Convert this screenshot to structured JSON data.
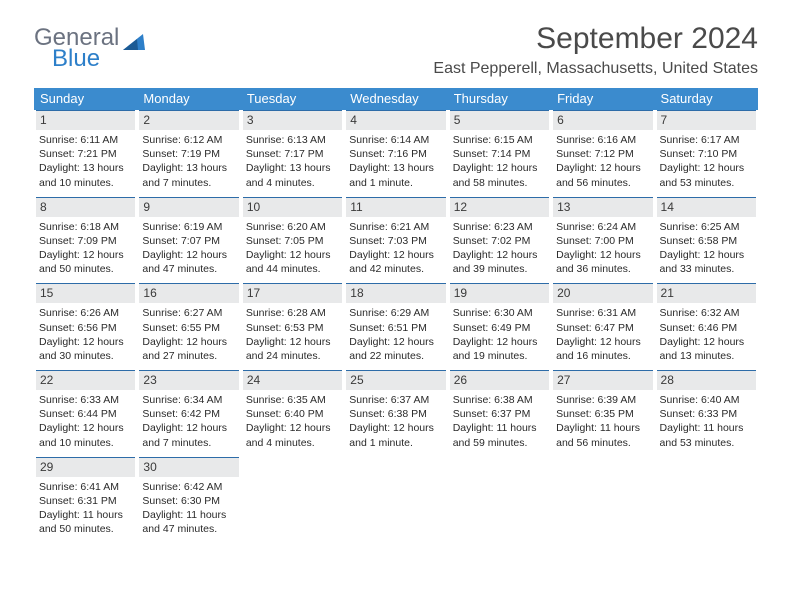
{
  "logo": {
    "word1": "General",
    "word2": "Blue"
  },
  "title": "September 2024",
  "location": "East Pepperell, Massachusetts, United States",
  "colors": {
    "header_bg": "#3b8bce",
    "header_text": "#ffffff",
    "daynum_bg": "#e8e9ea",
    "daynum_border": "#2d6ca8",
    "logo_gray": "#6b7280",
    "logo_blue": "#2d7fc9",
    "text": "#2a2a2a"
  },
  "daysOfWeek": [
    "Sunday",
    "Monday",
    "Tuesday",
    "Wednesday",
    "Thursday",
    "Friday",
    "Saturday"
  ],
  "weeks": [
    [
      {
        "n": "1",
        "sr": "Sunrise: 6:11 AM",
        "ss": "Sunset: 7:21 PM",
        "d1": "Daylight: 13 hours",
        "d2": "and 10 minutes."
      },
      {
        "n": "2",
        "sr": "Sunrise: 6:12 AM",
        "ss": "Sunset: 7:19 PM",
        "d1": "Daylight: 13 hours",
        "d2": "and 7 minutes."
      },
      {
        "n": "3",
        "sr": "Sunrise: 6:13 AM",
        "ss": "Sunset: 7:17 PM",
        "d1": "Daylight: 13 hours",
        "d2": "and 4 minutes."
      },
      {
        "n": "4",
        "sr": "Sunrise: 6:14 AM",
        "ss": "Sunset: 7:16 PM",
        "d1": "Daylight: 13 hours",
        "d2": "and 1 minute."
      },
      {
        "n": "5",
        "sr": "Sunrise: 6:15 AM",
        "ss": "Sunset: 7:14 PM",
        "d1": "Daylight: 12 hours",
        "d2": "and 58 minutes."
      },
      {
        "n": "6",
        "sr": "Sunrise: 6:16 AM",
        "ss": "Sunset: 7:12 PM",
        "d1": "Daylight: 12 hours",
        "d2": "and 56 minutes."
      },
      {
        "n": "7",
        "sr": "Sunrise: 6:17 AM",
        "ss": "Sunset: 7:10 PM",
        "d1": "Daylight: 12 hours",
        "d2": "and 53 minutes."
      }
    ],
    [
      {
        "n": "8",
        "sr": "Sunrise: 6:18 AM",
        "ss": "Sunset: 7:09 PM",
        "d1": "Daylight: 12 hours",
        "d2": "and 50 minutes."
      },
      {
        "n": "9",
        "sr": "Sunrise: 6:19 AM",
        "ss": "Sunset: 7:07 PM",
        "d1": "Daylight: 12 hours",
        "d2": "and 47 minutes."
      },
      {
        "n": "10",
        "sr": "Sunrise: 6:20 AM",
        "ss": "Sunset: 7:05 PM",
        "d1": "Daylight: 12 hours",
        "d2": "and 44 minutes."
      },
      {
        "n": "11",
        "sr": "Sunrise: 6:21 AM",
        "ss": "Sunset: 7:03 PM",
        "d1": "Daylight: 12 hours",
        "d2": "and 42 minutes."
      },
      {
        "n": "12",
        "sr": "Sunrise: 6:23 AM",
        "ss": "Sunset: 7:02 PM",
        "d1": "Daylight: 12 hours",
        "d2": "and 39 minutes."
      },
      {
        "n": "13",
        "sr": "Sunrise: 6:24 AM",
        "ss": "Sunset: 7:00 PM",
        "d1": "Daylight: 12 hours",
        "d2": "and 36 minutes."
      },
      {
        "n": "14",
        "sr": "Sunrise: 6:25 AM",
        "ss": "Sunset: 6:58 PM",
        "d1": "Daylight: 12 hours",
        "d2": "and 33 minutes."
      }
    ],
    [
      {
        "n": "15",
        "sr": "Sunrise: 6:26 AM",
        "ss": "Sunset: 6:56 PM",
        "d1": "Daylight: 12 hours",
        "d2": "and 30 minutes."
      },
      {
        "n": "16",
        "sr": "Sunrise: 6:27 AM",
        "ss": "Sunset: 6:55 PM",
        "d1": "Daylight: 12 hours",
        "d2": "and 27 minutes."
      },
      {
        "n": "17",
        "sr": "Sunrise: 6:28 AM",
        "ss": "Sunset: 6:53 PM",
        "d1": "Daylight: 12 hours",
        "d2": "and 24 minutes."
      },
      {
        "n": "18",
        "sr": "Sunrise: 6:29 AM",
        "ss": "Sunset: 6:51 PM",
        "d1": "Daylight: 12 hours",
        "d2": "and 22 minutes."
      },
      {
        "n": "19",
        "sr": "Sunrise: 6:30 AM",
        "ss": "Sunset: 6:49 PM",
        "d1": "Daylight: 12 hours",
        "d2": "and 19 minutes."
      },
      {
        "n": "20",
        "sr": "Sunrise: 6:31 AM",
        "ss": "Sunset: 6:47 PM",
        "d1": "Daylight: 12 hours",
        "d2": "and 16 minutes."
      },
      {
        "n": "21",
        "sr": "Sunrise: 6:32 AM",
        "ss": "Sunset: 6:46 PM",
        "d1": "Daylight: 12 hours",
        "d2": "and 13 minutes."
      }
    ],
    [
      {
        "n": "22",
        "sr": "Sunrise: 6:33 AM",
        "ss": "Sunset: 6:44 PM",
        "d1": "Daylight: 12 hours",
        "d2": "and 10 minutes."
      },
      {
        "n": "23",
        "sr": "Sunrise: 6:34 AM",
        "ss": "Sunset: 6:42 PM",
        "d1": "Daylight: 12 hours",
        "d2": "and 7 minutes."
      },
      {
        "n": "24",
        "sr": "Sunrise: 6:35 AM",
        "ss": "Sunset: 6:40 PM",
        "d1": "Daylight: 12 hours",
        "d2": "and 4 minutes."
      },
      {
        "n": "25",
        "sr": "Sunrise: 6:37 AM",
        "ss": "Sunset: 6:38 PM",
        "d1": "Daylight: 12 hours",
        "d2": "and 1 minute."
      },
      {
        "n": "26",
        "sr": "Sunrise: 6:38 AM",
        "ss": "Sunset: 6:37 PM",
        "d1": "Daylight: 11 hours",
        "d2": "and 59 minutes."
      },
      {
        "n": "27",
        "sr": "Sunrise: 6:39 AM",
        "ss": "Sunset: 6:35 PM",
        "d1": "Daylight: 11 hours",
        "d2": "and 56 minutes."
      },
      {
        "n": "28",
        "sr": "Sunrise: 6:40 AM",
        "ss": "Sunset: 6:33 PM",
        "d1": "Daylight: 11 hours",
        "d2": "and 53 minutes."
      }
    ],
    [
      {
        "n": "29",
        "sr": "Sunrise: 6:41 AM",
        "ss": "Sunset: 6:31 PM",
        "d1": "Daylight: 11 hours",
        "d2": "and 50 minutes."
      },
      {
        "n": "30",
        "sr": "Sunrise: 6:42 AM",
        "ss": "Sunset: 6:30 PM",
        "d1": "Daylight: 11 hours",
        "d2": "and 47 minutes."
      },
      {
        "empty": true
      },
      {
        "empty": true
      },
      {
        "empty": true
      },
      {
        "empty": true
      },
      {
        "empty": true
      }
    ]
  ]
}
